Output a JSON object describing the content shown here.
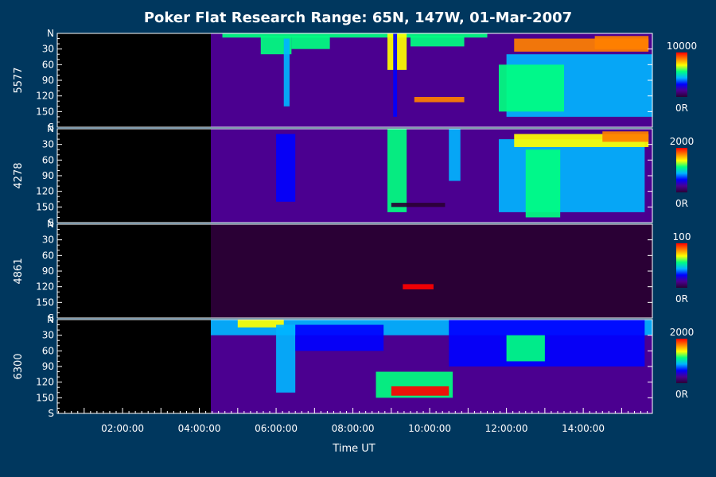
{
  "chart_data": {
    "type": "heatmap",
    "title": "Poker Flat Research Range: 65N, 147W, 01-Mar-2007",
    "xlabel": "Time UT",
    "x_range_hours": [
      0.3,
      15.8
    ],
    "x_ticks": [
      {
        "hour": 2,
        "label": "02:00:00"
      },
      {
        "hour": 4,
        "label": "04:00:00"
      },
      {
        "hour": 6,
        "label": "06:00:00"
      },
      {
        "hour": 8,
        "label": "08:00:00"
      },
      {
        "hour": 10,
        "label": "10:00:00"
      },
      {
        "hour": 12,
        "label": "12:00:00"
      },
      {
        "hour": 14,
        "label": "14:00:00"
      }
    ],
    "data_start_hour": 4.3,
    "y_axis": {
      "range_deg": [
        0,
        180
      ],
      "ticks": [
        {
          "deg": 0,
          "label": "N"
        },
        {
          "deg": 30,
          "label": "30"
        },
        {
          "deg": 60,
          "label": "60"
        },
        {
          "deg": 90,
          "label": "90"
        },
        {
          "deg": 120,
          "label": "120"
        },
        {
          "deg": 150,
          "label": "150"
        },
        {
          "deg": 180,
          "label": "S"
        }
      ]
    },
    "colorscale": [
      "#2a0035",
      "#4b0090",
      "#0000ff",
      "#00b4ff",
      "#00ff80",
      "#ffff00",
      "#ff8000",
      "#ff0000"
    ],
    "panels": [
      {
        "name": "5577",
        "max_label": "10000",
        "min_label": "0R",
        "events": [
          {
            "t0": 4.3,
            "t1": 15.8,
            "a0": 0,
            "a1": 180,
            "level": 0.14
          },
          {
            "t0": 4.6,
            "t1": 11.5,
            "a0": 0,
            "a1": 8,
            "level": 0.5
          },
          {
            "t0": 5.6,
            "t1": 6.4,
            "a0": 5,
            "a1": 40,
            "level": 0.55
          },
          {
            "t0": 6.2,
            "t1": 6.35,
            "a0": 10,
            "a1": 140,
            "level": 0.45
          },
          {
            "t0": 6.4,
            "t1": 7.4,
            "a0": 5,
            "a1": 30,
            "level": 0.6
          },
          {
            "t0": 8.9,
            "t1": 9.4,
            "a0": 0,
            "a1": 70,
            "level": 0.75
          },
          {
            "t0": 9.05,
            "t1": 9.15,
            "a0": 0,
            "a1": 160,
            "level": 0.35
          },
          {
            "t0": 9.5,
            "t1": 10.9,
            "a0": 5,
            "a1": 25,
            "level": 0.5
          },
          {
            "t0": 9.6,
            "t1": 10.9,
            "a0": 122,
            "a1": 132,
            "level": 0.8
          },
          {
            "t0": 12.0,
            "t1": 15.8,
            "a0": 40,
            "a1": 160,
            "level": 0.48
          },
          {
            "t0": 11.8,
            "t1": 13.5,
            "a0": 60,
            "a1": 150,
            "level": 0.55
          },
          {
            "t0": 12.2,
            "t1": 15.7,
            "a0": 10,
            "a1": 35,
            "level": 0.85
          },
          {
            "t0": 14.3,
            "t1": 15.7,
            "a0": 5,
            "a1": 30,
            "level": 0.9
          }
        ]
      },
      {
        "name": "4278",
        "max_label": "2000",
        "min_label": "0R",
        "events": [
          {
            "t0": 4.3,
            "t1": 15.8,
            "a0": 0,
            "a1": 180,
            "level": 0.1
          },
          {
            "t0": 6.0,
            "t1": 6.5,
            "a0": 10,
            "a1": 140,
            "level": 0.35
          },
          {
            "t0": 8.9,
            "t1": 9.4,
            "a0": 0,
            "a1": 160,
            "level": 0.5
          },
          {
            "t0": 9.0,
            "t1": 10.4,
            "a0": 142,
            "a1": 150,
            "level": 0.0
          },
          {
            "t0": 10.5,
            "t1": 10.8,
            "a0": 0,
            "a1": 100,
            "level": 0.38
          },
          {
            "t0": 11.8,
            "t1": 15.6,
            "a0": 20,
            "a1": 160,
            "level": 0.42
          },
          {
            "t0": 12.5,
            "t1": 13.4,
            "a0": 40,
            "a1": 170,
            "level": 0.5
          },
          {
            "t0": 12.2,
            "t1": 15.7,
            "a0": 10,
            "a1": 35,
            "level": 0.75
          },
          {
            "t0": 14.5,
            "t1": 15.7,
            "a0": 5,
            "a1": 25,
            "level": 0.85
          }
        ]
      },
      {
        "name": "4861",
        "max_label": "100",
        "min_label": "0R",
        "events": [
          {
            "t0": 4.3,
            "t1": 15.8,
            "a0": 0,
            "a1": 180,
            "level": 0.05
          },
          {
            "t0": 9.3,
            "t1": 10.1,
            "a0": 115,
            "a1": 125,
            "level": 0.95
          }
        ]
      },
      {
        "name": "6300",
        "max_label": "2000",
        "min_label": "0R",
        "events": [
          {
            "t0": 4.3,
            "t1": 15.8,
            "a0": 0,
            "a1": 180,
            "level": 0.12
          },
          {
            "t0": 4.3,
            "t1": 15.8,
            "a0": 0,
            "a1": 30,
            "level": 0.4
          },
          {
            "t0": 5.0,
            "t1": 6.2,
            "a0": 0,
            "a1": 15,
            "level": 0.65
          },
          {
            "t0": 6.0,
            "t1": 6.5,
            "a0": 10,
            "a1": 140,
            "level": 0.45
          },
          {
            "t0": 6.5,
            "t1": 8.8,
            "a0": 10,
            "a1": 60,
            "level": 0.35
          },
          {
            "t0": 8.6,
            "t1": 10.6,
            "a0": 100,
            "a1": 150,
            "level": 0.6
          },
          {
            "t0": 9.0,
            "t1": 10.5,
            "a0": 128,
            "a1": 146,
            "level": 0.98
          },
          {
            "t0": 10.5,
            "t1": 15.6,
            "a0": 0,
            "a1": 90,
            "level": 0.35
          },
          {
            "t0": 12.0,
            "t1": 13.0,
            "a0": 30,
            "a1": 80,
            "level": 0.5
          }
        ]
      }
    ],
    "grid": false
  }
}
